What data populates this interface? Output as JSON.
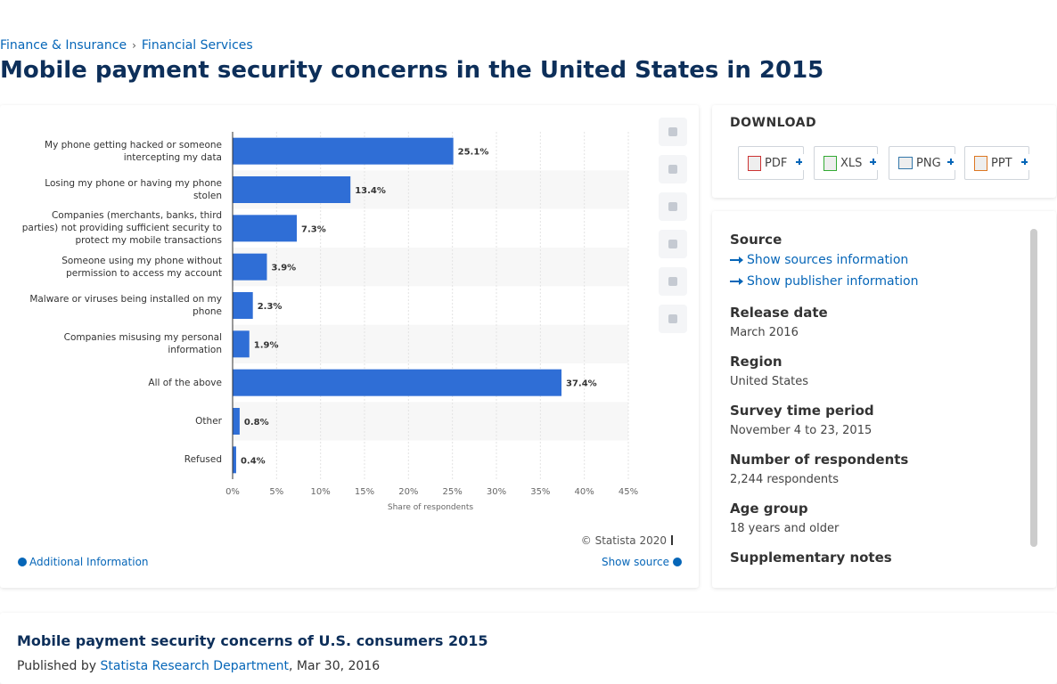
{
  "breadcrumb": [
    "Finance & Insurance",
    "Financial Services"
  ],
  "title": "Mobile payment security concerns in the United States in 2015",
  "chart_data": {
    "type": "bar",
    "orientation": "horizontal",
    "categories": [
      "My phone getting hacked or someone intercepting my data",
      "Losing my phone or having my phone stolen",
      "Companies (merchants, banks, third parties) not providing sufficient security to protect my mobile transactions",
      "Someone using my phone without permission to access my account",
      "Malware or viruses being installed on my phone",
      "Companies misusing my personal information",
      "All of the above",
      "Other",
      "Refused"
    ],
    "values": [
      25.1,
      13.4,
      7.3,
      3.9,
      2.3,
      1.9,
      37.4,
      0.8,
      0.4
    ],
    "value_labels": [
      "25.1%",
      "13.4%",
      "7.3%",
      "3.9%",
      "2.3%",
      "1.9%",
      "37.4%",
      "0.8%",
      "0.4%"
    ],
    "color": "#2f6ed6",
    "xlim": [
      0,
      45
    ],
    "xticks": [
      {
        "value": 0,
        "label": "0%"
      },
      {
        "value": 5,
        "label": "5%"
      },
      {
        "value": 10,
        "label": "10%"
      },
      {
        "value": 15,
        "label": "15%"
      },
      {
        "value": 20,
        "label": "20%"
      },
      {
        "value": 25,
        "label": "25%"
      },
      {
        "value": 30,
        "label": "30%"
      },
      {
        "value": 35,
        "label": "35%"
      },
      {
        "value": 40,
        "label": "40%"
      },
      {
        "value": 45,
        "label": "45%"
      }
    ],
    "x_label": "Share of respondents",
    "grid": true
  },
  "chart_footer": {
    "copyright": "© Statista 2020",
    "additional_info": "Additional Information",
    "show_source": "Show source"
  },
  "download": {
    "title": "DOWNLOAD",
    "buttons": [
      "PDF",
      "XLS",
      "PNG",
      "PPT"
    ]
  },
  "details": {
    "source": "Source",
    "links": [
      "Show sources information",
      "Show publisher information"
    ],
    "items": [
      {
        "label": "Release date",
        "value": "March 2016"
      },
      {
        "label": "Region",
        "value": "United States"
      },
      {
        "label": "Survey time period",
        "value": "November 4 to 23, 2015"
      },
      {
        "label": "Number of respondents",
        "value": "2,244 respondents"
      },
      {
        "label": "Age group",
        "value": "18 years and older"
      }
    ],
    "supplementary": "Supplementary notes"
  },
  "footer": {
    "title": "Mobile payment security concerns of U.S. consumers 2015",
    "published_prefix": "Published by",
    "publisher": "Statista Research Department",
    "date": ", Mar 30, 2016"
  }
}
